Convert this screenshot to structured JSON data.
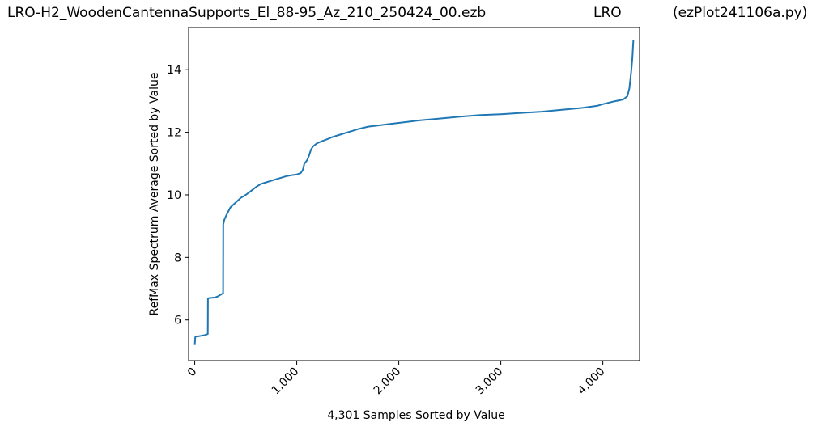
{
  "header": {
    "file_title": "LRO-H2_WoodenCantennaSupports_El_88-95_Az_210_250424_00.ezb",
    "site": "LRO",
    "script": "(ezPlot241106a.py)"
  },
  "chart_data": {
    "type": "line",
    "xlabel": "4,301 Samples Sorted by Value",
    "ylabel": "RefMax Spectrum Average Sorted by Value",
    "xlim": [
      -60,
      4360
    ],
    "ylim": [
      4.7,
      15.35
    ],
    "x_ticks": [
      0,
      1000,
      2000,
      3000,
      4000
    ],
    "x_tick_labels": [
      "0",
      "1,000",
      "2,000",
      "3,000",
      "4,000"
    ],
    "y_ticks": [
      6,
      8,
      10,
      12,
      14
    ],
    "y_tick_labels": [
      "6",
      "8",
      "10",
      "12",
      "14"
    ],
    "grid": false,
    "color": "#1f77b4",
    "series": [
      {
        "x": [
          0,
          5,
          10,
          40,
          100,
          128,
          130,
          140,
          200,
          230,
          260,
          278,
          280,
          290,
          310,
          350,
          400,
          450,
          500,
          550,
          600,
          650,
          700,
          750,
          800,
          850,
          900,
          950,
          1000,
          1040,
          1060,
          1075,
          1080,
          1100,
          1120,
          1140,
          1160,
          1200,
          1250,
          1300,
          1350,
          1400,
          1450,
          1500,
          1550,
          1600,
          1700,
          1800,
          1900,
          2000,
          2200,
          2400,
          2600,
          2800,
          3000,
          3200,
          3400,
          3600,
          3800,
          3950,
          4000,
          4100,
          4200,
          4240,
          4260,
          4270,
          4280,
          4290,
          4295,
          4300
        ],
        "y": [
          5.2,
          5.45,
          5.47,
          5.48,
          5.52,
          5.55,
          6.68,
          6.7,
          6.72,
          6.76,
          6.82,
          6.85,
          9.05,
          9.2,
          9.35,
          9.6,
          9.75,
          9.9,
          10.0,
          10.12,
          10.25,
          10.35,
          10.4,
          10.45,
          10.5,
          10.55,
          10.6,
          10.63,
          10.65,
          10.7,
          10.8,
          11.0,
          11.02,
          11.1,
          11.25,
          11.45,
          11.55,
          11.65,
          11.72,
          11.78,
          11.85,
          11.9,
          11.95,
          12.0,
          12.05,
          12.1,
          12.18,
          12.22,
          12.26,
          12.3,
          12.38,
          12.44,
          12.5,
          12.55,
          12.58,
          12.62,
          12.66,
          12.72,
          12.78,
          12.85,
          12.9,
          12.98,
          13.05,
          13.15,
          13.4,
          13.7,
          14.0,
          14.4,
          14.7,
          14.95
        ]
      }
    ]
  }
}
